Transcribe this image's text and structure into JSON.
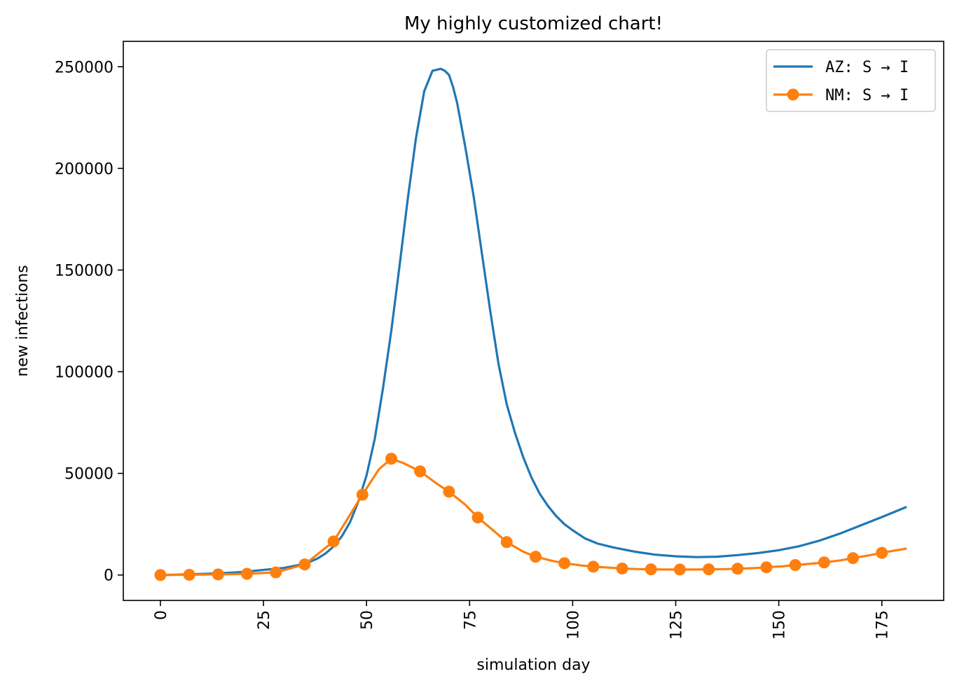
{
  "chart_data": {
    "type": "line",
    "title": "My highly customized chart!",
    "xlabel": "simulation day",
    "ylabel": "new infections",
    "xlim": [
      -9,
      190
    ],
    "ylim": [
      -12500,
      262500
    ],
    "x_ticks": [
      0,
      25,
      50,
      75,
      100,
      125,
      150,
      175
    ],
    "x_tick_labels": [
      "0",
      "25",
      "50",
      "75",
      "100",
      "125",
      "150",
      "175"
    ],
    "x_tick_rotation": 90,
    "y_ticks": [
      0,
      50000,
      100000,
      150000,
      200000,
      250000
    ],
    "y_tick_labels": [
      "0",
      "50000",
      "100000",
      "150000",
      "200000",
      "250000"
    ],
    "grid": false,
    "legend_position": "upper right",
    "series": [
      {
        "name": "AZ: S → I",
        "color": "#1f77b4",
        "marker": "none",
        "x": [
          0,
          5,
          10,
          15,
          20,
          25,
          30,
          35,
          38,
          40,
          42,
          44,
          46,
          48,
          50,
          52,
          54,
          56,
          58,
          60,
          62,
          64,
          66,
          68,
          69,
          70,
          71,
          72,
          74,
          76,
          78,
          80,
          82,
          84,
          86,
          88,
          90,
          92,
          94,
          96,
          98,
          100,
          103,
          106,
          110,
          115,
          120,
          125,
          130,
          135,
          140,
          145,
          150,
          155,
          160,
          165,
          170,
          175,
          178,
          181
        ],
        "y": [
          0,
          200,
          500,
          900,
          1500,
          2500,
          3500,
          5500,
          8000,
          10500,
          14000,
          19000,
          26000,
          36000,
          49000,
          67000,
          92000,
          120000,
          152000,
          185000,
          215000,
          238000,
          248000,
          249000,
          248000,
          246000,
          240000,
          232000,
          210000,
          186000,
          158000,
          130000,
          104000,
          84000,
          70000,
          58000,
          48000,
          40000,
          34000,
          29000,
          25000,
          22000,
          18000,
          15500,
          13500,
          11500,
          10000,
          9200,
          8800,
          9000,
          9800,
          10800,
          12200,
          14200,
          17000,
          20500,
          24500,
          28500,
          31000,
          33500
        ]
      },
      {
        "name": "NM: S → I",
        "color": "#ff7f0e",
        "marker": "circle",
        "x": [
          0,
          7,
          14,
          21,
          28,
          35,
          42,
          49,
          53,
          56,
          59,
          63,
          67,
          70,
          74,
          77,
          81,
          84,
          88,
          91,
          95,
          98,
          102,
          105,
          109,
          112,
          116,
          119,
          123,
          126,
          130,
          133,
          137,
          140,
          144,
          147,
          151,
          154,
          158,
          161,
          165,
          168,
          172,
          175,
          178,
          181
        ],
        "y": [
          0,
          100,
          300,
          600,
          1300,
          5200,
          16500,
          39500,
          52000,
          57200,
          55000,
          51000,
          45000,
          41000,
          34500,
          28300,
          21500,
          16200,
          11500,
          9000,
          7000,
          5800,
          4700,
          4100,
          3600,
          3200,
          2900,
          2800,
          2700,
          2700,
          2700,
          2800,
          2900,
          3100,
          3400,
          3800,
          4300,
          4900,
          5600,
          6200,
          7200,
          8300,
          9700,
          10900,
          12000,
          13000
        ],
        "marker_indices": [
          0,
          1,
          2,
          3,
          4,
          5,
          6,
          7,
          9,
          11,
          13,
          15,
          17,
          19,
          21,
          23,
          25,
          27,
          29,
          31,
          33,
          35,
          37,
          39,
          41,
          43
        ]
      }
    ]
  }
}
